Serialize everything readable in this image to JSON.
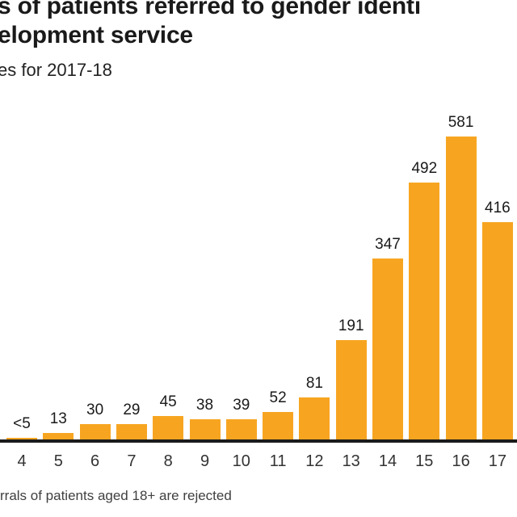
{
  "header": {
    "title_line1": "s of patients referred to gender identi",
    "title_line2": "elopment service",
    "subtitle": "es for 2017-18"
  },
  "footer": {
    "note": "rrals of patients aged 18+ are rejected"
  },
  "chart_data": {
    "type": "bar",
    "title": "s of patients referred to gender identi / elopment service",
    "subtitle": "es for 2017-18",
    "categories": [
      "4",
      "5",
      "6",
      "7",
      "8",
      "9",
      "10",
      "11",
      "12",
      "13",
      "14",
      "15",
      "16",
      "17"
    ],
    "values": [
      "<5",
      13,
      30,
      29,
      45,
      38,
      39,
      52,
      81,
      191,
      347,
      492,
      581,
      416
    ],
    "censored_label": "<5",
    "censored_numeric": 2,
    "xlabel": "",
    "ylabel": "",
    "ylim": [
      0,
      620
    ],
    "grid": false,
    "legend": false,
    "colors": {
      "bar": "#f7a521",
      "axis": "#1a1a1a",
      "value_text": "#1a1a1a",
      "tick_text": "#333333"
    }
  }
}
